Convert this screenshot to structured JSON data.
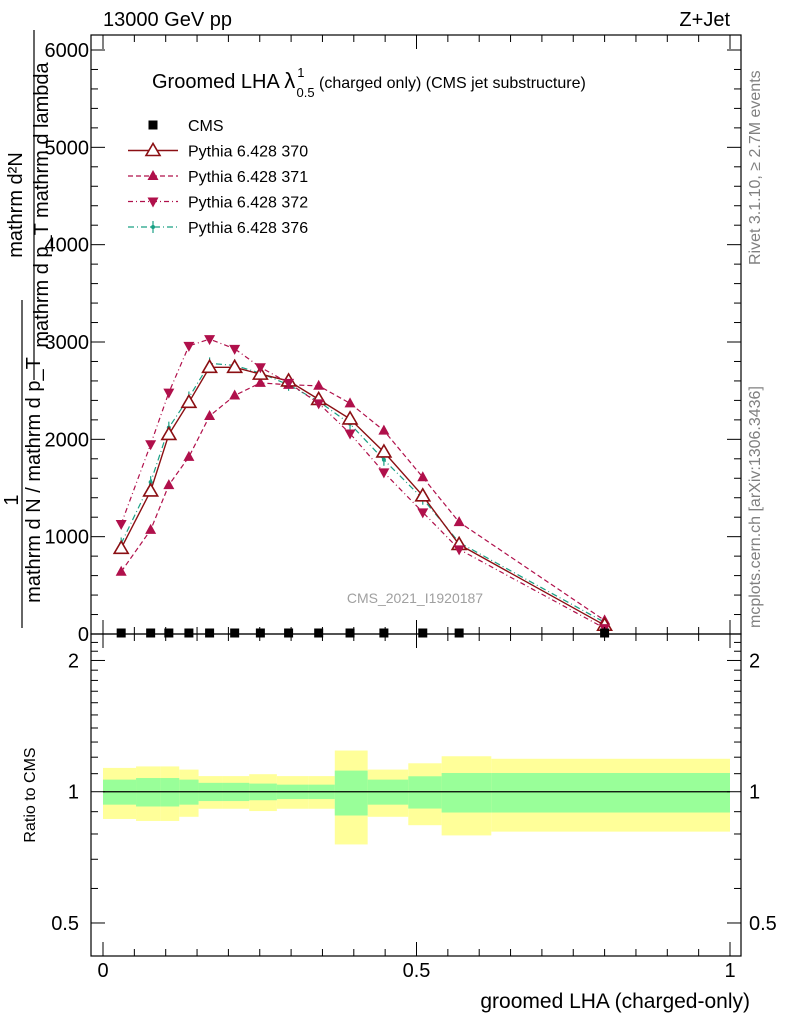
{
  "header": {
    "left": "13000 GeV pp",
    "right": "Z+Jet"
  },
  "side": {
    "rivet": "Rivet 3.1.10, ≥ 2.7M events",
    "mcplots": "mcplots.cern.ch [arXiv:1306.3436]"
  },
  "main": {
    "title_main": "Groomed LHA ",
    "title_lambda": "λ",
    "title_sup": "1",
    "title_sub": "0.5",
    "title_rest": " (charged only) (CMS jet substructure)",
    "ylabel_num": "mathrm d²N",
    "ylabel_den": "mathrm d p_T mathrm d lambda",
    "ylabel_num2": "mathrm d N / mathrm d p_T",
    "ylabel_one": "1",
    "watermark": "CMS_2021_I1920187"
  },
  "ratio": {
    "ylabel": "Ratio to CMS"
  },
  "colors": {
    "p370": "#8b0f13",
    "p371": "#b0104b",
    "p372": "#b0104b",
    "p376": "#1aa085",
    "band_inner": "#99ff99",
    "band_outer": "#ffff99"
  },
  "chart_data": {
    "type": "line",
    "xlabel": "groomed LHA (charged-only)",
    "xlim": [
      0,
      1
    ],
    "ylim": [
      0,
      6000
    ],
    "ratio_ylim": [
      0.42,
      2.3
    ],
    "x_ticks": [
      "0",
      "0.5",
      "1"
    ],
    "y_ticks": [
      "0",
      "1000",
      "2000",
      "3000",
      "4000",
      "5000",
      "6000"
    ],
    "ratio_ticks": [
      "0.5",
      "1",
      "2"
    ],
    "bin_edges": [
      0,
      0.0527,
      0.0915,
      0.1216,
      0.1524,
      0.1905,
      0.2332,
      0.2773,
      0.3275,
      0.3697,
      0.4221,
      0.4869,
      0.5401,
      0.6193,
      1.0
    ],
    "x": [
      0.029,
      0.076,
      0.105,
      0.137,
      0.17,
      0.21,
      0.251,
      0.296,
      0.344,
      0.394,
      0.448,
      0.51,
      0.568,
      0.8
    ],
    "legend_position": "top-left",
    "series": [
      {
        "name": "CMS",
        "style": "data",
        "values": [
          0,
          0,
          0,
          0,
          0,
          0,
          0,
          0,
          0,
          0,
          0,
          0,
          0,
          0
        ]
      },
      {
        "name": "Pythia 6.428 370",
        "style": "open-triangle-up",
        "values": [
          880,
          1470,
          2050,
          2380,
          2740,
          2740,
          2670,
          2600,
          2410,
          2210,
          1870,
          1420,
          920,
          90
        ]
      },
      {
        "name": "Pythia 6.428 371",
        "style": "triangle-up",
        "values": [
          640,
          1070,
          1530,
          1820,
          2240,
          2450,
          2580,
          2560,
          2550,
          2370,
          2090,
          1610,
          1150,
          140
        ]
      },
      {
        "name": "Pythia 6.428 372",
        "style": "triangle-down",
        "values": [
          1130,
          1950,
          2480,
          2960,
          3030,
          2930,
          2740,
          2580,
          2370,
          2060,
          1660,
          1250,
          870,
          60
        ]
      },
      {
        "name": "Pythia 6.428 376",
        "style": "dot",
        "values": [
          930,
          1560,
          2120,
          2430,
          2780,
          2760,
          2680,
          2560,
          2390,
          2160,
          1790,
          1390,
          940,
          120
        ]
      }
    ],
    "ratio_band_inner": [
      [
        0.934,
        1.066
      ],
      [
        0.925,
        1.075
      ],
      [
        0.925,
        1.075
      ],
      [
        0.934,
        1.066
      ],
      [
        0.952,
        1.048
      ],
      [
        0.952,
        1.048
      ],
      [
        0.956,
        1.044
      ],
      [
        0.962,
        1.038
      ],
      [
        0.962,
        1.038
      ],
      [
        0.882,
        1.118
      ],
      [
        0.934,
        1.066
      ],
      [
        0.915,
        1.085
      ],
      [
        0.896,
        1.104
      ],
      [
        0.896,
        1.104
      ]
    ],
    "ratio_band_outer": [
      [
        0.866,
        1.134
      ],
      [
        0.857,
        1.143
      ],
      [
        0.857,
        1.143
      ],
      [
        0.876,
        1.124
      ],
      [
        0.914,
        1.086
      ],
      [
        0.914,
        1.086
      ],
      [
        0.903,
        1.097
      ],
      [
        0.914,
        1.086
      ],
      [
        0.914,
        1.086
      ],
      [
        0.757,
        1.243
      ],
      [
        0.876,
        1.124
      ],
      [
        0.838,
        1.162
      ],
      [
        0.794,
        1.206
      ],
      [
        0.81,
        1.19
      ]
    ]
  }
}
